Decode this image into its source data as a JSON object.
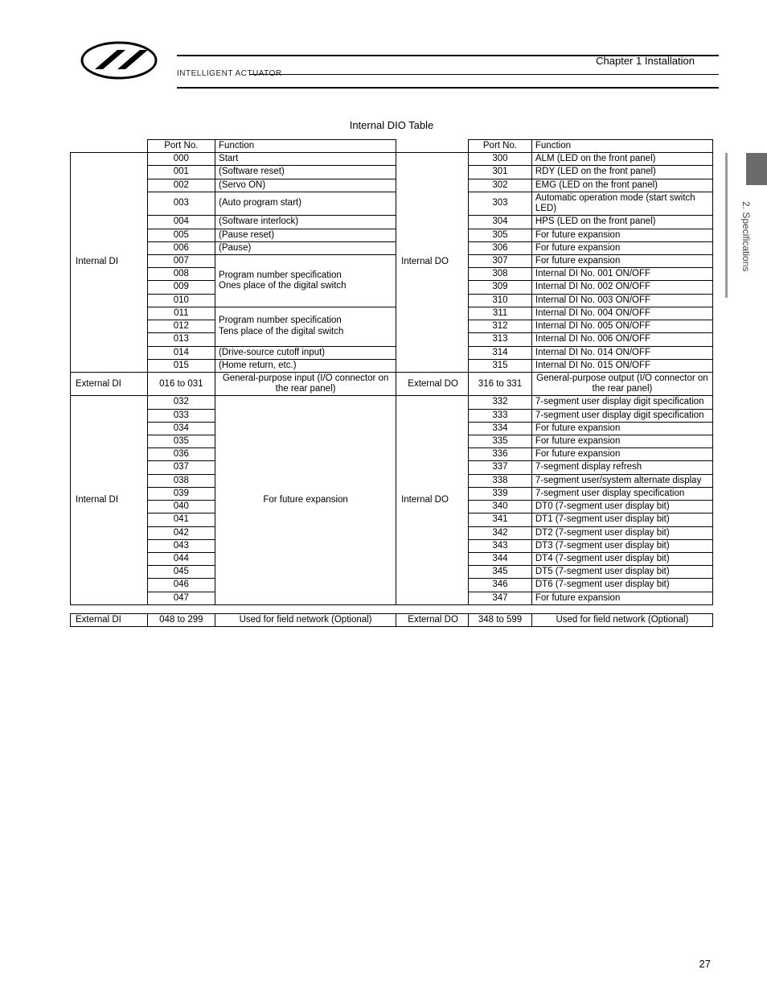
{
  "brand": "INTELLIGENT ACTUATOR",
  "chapter": "Chapter 1   Installation",
  "side_tab": "2. Specifications",
  "title": "Internal DIO Table",
  "page_number": "27",
  "headers": {
    "port_no": "Port No.",
    "function": "Function"
  },
  "categories": {
    "internal_di": "Internal DI",
    "external_di": "External DI",
    "internal_do": "Internal DO",
    "external_do": "External DO"
  },
  "block1": {
    "di": [
      {
        "port": "000",
        "func": "Start"
      },
      {
        "port": "001",
        "func": "(Software reset)"
      },
      {
        "port": "002",
        "func": "(Servo ON)"
      },
      {
        "port": "003",
        "func": "(Auto program start)"
      },
      {
        "port": "004",
        "func": "(Software interlock)"
      },
      {
        "port": "005",
        "func": "(Pause reset)"
      },
      {
        "port": "006",
        "func": "(Pause)"
      },
      {
        "port": "007",
        "func": ""
      },
      {
        "port": "008",
        "func": "Program number specification"
      },
      {
        "port": "009",
        "func": "Ones place of the digital switch"
      },
      {
        "port": "010",
        "func": ""
      },
      {
        "port": "011",
        "func": ""
      },
      {
        "port": "012",
        "func": "Program number specification"
      },
      {
        "port": "013",
        "func": "Tens place of the digital switch"
      },
      {
        "port": "014",
        "func": "(Drive-source cutoff input)"
      },
      {
        "port": "015",
        "func": "(Home return, etc.)"
      }
    ],
    "do": [
      {
        "port": "300",
        "func": "ALM (LED on the front panel)"
      },
      {
        "port": "301",
        "func": "RDY (LED on the front panel)"
      },
      {
        "port": "302",
        "func": "EMG (LED on the front panel)"
      },
      {
        "port": "303",
        "func": "Automatic operation mode (start switch LED)"
      },
      {
        "port": "304",
        "func": "HPS (LED on the front panel)"
      },
      {
        "port": "305",
        "func": "For future expansion"
      },
      {
        "port": "306",
        "func": "For future expansion"
      },
      {
        "port": "307",
        "func": "For future expansion"
      },
      {
        "port": "308",
        "func": "Internal DI No. 001 ON/OFF"
      },
      {
        "port": "309",
        "func": "Internal DI No. 002 ON/OFF"
      },
      {
        "port": "310",
        "func": "Internal DI No. 003 ON/OFF"
      },
      {
        "port": "311",
        "func": "Internal DI No. 004 ON/OFF"
      },
      {
        "port": "312",
        "func": "Internal DI No. 005 ON/OFF"
      },
      {
        "port": "313",
        "func": "Internal DI No. 006 ON/OFF"
      },
      {
        "port": "314",
        "func": "Internal DI No. 014 ON/OFF"
      },
      {
        "port": "315",
        "func": "Internal DI No. 015 ON/OFF"
      }
    ]
  },
  "block2": {
    "di": {
      "port": "016 to 031",
      "func": "General-purpose input (I/O connector on the rear panel)"
    },
    "do": {
      "port": "316 to 331",
      "func": "General-purpose output (I/O connector on the rear panel)"
    }
  },
  "block3": {
    "di_ports": [
      "032",
      "033",
      "034",
      "035",
      "036",
      "037",
      "038",
      "039",
      "040",
      "041",
      "042",
      "043",
      "044",
      "045",
      "046",
      "047"
    ],
    "di_func": "For future expansion",
    "do": [
      {
        "port": "332",
        "func": "7-segment user display digit specification"
      },
      {
        "port": "333",
        "func": "7-segment user display digit specification"
      },
      {
        "port": "334",
        "func": "For future expansion"
      },
      {
        "port": "335",
        "func": "For future expansion"
      },
      {
        "port": "336",
        "func": "For future expansion"
      },
      {
        "port": "337",
        "func": "7-segment display refresh"
      },
      {
        "port": "338",
        "func": "7-segment user/system alternate display"
      },
      {
        "port": "339",
        "func": "7-segment user display specification"
      },
      {
        "port": "340",
        "func": "DT0 (7-segment user display bit)"
      },
      {
        "port": "341",
        "func": "DT1 (7-segment user display bit)"
      },
      {
        "port": "342",
        "func": "DT2 (7-segment user display bit)"
      },
      {
        "port": "343",
        "func": "DT3 (7-segment user display bit)"
      },
      {
        "port": "344",
        "func": "DT4 (7-segment user display bit)"
      },
      {
        "port": "345",
        "func": "DT5 (7-segment user display bit)"
      },
      {
        "port": "346",
        "func": "DT6 (7-segment user display bit)"
      },
      {
        "port": "347",
        "func": "For future expansion"
      }
    ]
  },
  "block4": {
    "di": {
      "port": "048 to 299",
      "func": "Used for field network (Optional)"
    },
    "do": {
      "port": "348 to 599",
      "func": "Used for field network (Optional)"
    }
  }
}
